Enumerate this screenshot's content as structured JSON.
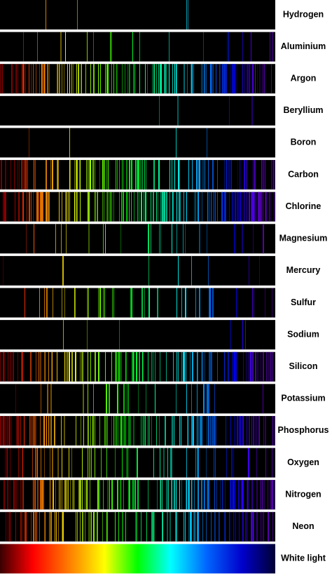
{
  "rows": [
    {
      "label": "Hydrogen"
    },
    {
      "label": "Aluminium"
    },
    {
      "label": "Argon"
    },
    {
      "label": "Beryllium"
    },
    {
      "label": "Boron"
    },
    {
      "label": "Carbon"
    },
    {
      "label": "Chlorine"
    },
    {
      "label": "Magnesium"
    },
    {
      "label": "Mercury"
    },
    {
      "label": "Sulfur"
    },
    {
      "label": "Sodium"
    },
    {
      "label": "Silicon"
    },
    {
      "label": "Potassium"
    },
    {
      "label": "Phosphorus"
    },
    {
      "label": "Oxygen"
    },
    {
      "label": "Nitrogen"
    },
    {
      "label": "Neon"
    },
    {
      "label": "White light"
    }
  ]
}
